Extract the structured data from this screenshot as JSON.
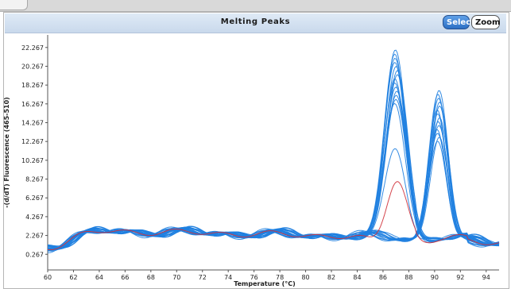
{
  "window": {
    "title": "Melting Peaks",
    "select_label": "Select",
    "zoom_label": "Zoom"
  },
  "colors": {
    "curve": "#1f7fe0",
    "reference_curve": "#d0313a",
    "title_bar": "#d4e2f2",
    "select_button": "#3d82d6"
  },
  "chart_data": {
    "type": "line",
    "title": "Melting Peaks",
    "xlabel": "Temperature (°C)",
    "ylabel": "-(d/dT) Fluorescence (465-510)",
    "xlim": [
      60,
      95
    ],
    "ylim": [
      -1.4,
      23.6
    ],
    "x_ticks": [
      60,
      62,
      64,
      66,
      68,
      70,
      72,
      74,
      76,
      78,
      80,
      82,
      84,
      86,
      88,
      90,
      92,
      94
    ],
    "y_ticks": [
      "0.267",
      "2.267",
      "4.267",
      "6.267",
      "8.267",
      "10.267",
      "12.267",
      "14.267",
      "16.267",
      "18.267",
      "20.267",
      "22.267"
    ],
    "grid": false,
    "legend": "none",
    "series_groups": [
      {
        "group": "peak at ~87 °C",
        "color": "#1f7fe0",
        "count": 14,
        "peak_x": 87.0,
        "peak_y_range": [
          16.3,
          22.0
        ]
      },
      {
        "group": "lower peak at ~87 °C",
        "color": "#1f7fe0",
        "count": 1,
        "peak_x": 87.0,
        "peak_y": 11.5
      },
      {
        "group": "peak at ~90.3 °C",
        "color": "#1f7fe0",
        "count": 14,
        "peak_x": 90.3,
        "peak_y_range": [
          12.3,
          17.7
        ]
      },
      {
        "group": "reference",
        "color": "#d0313a",
        "count": 1,
        "peak_x": 87.0,
        "peak_y": 8.0
      }
    ]
  }
}
